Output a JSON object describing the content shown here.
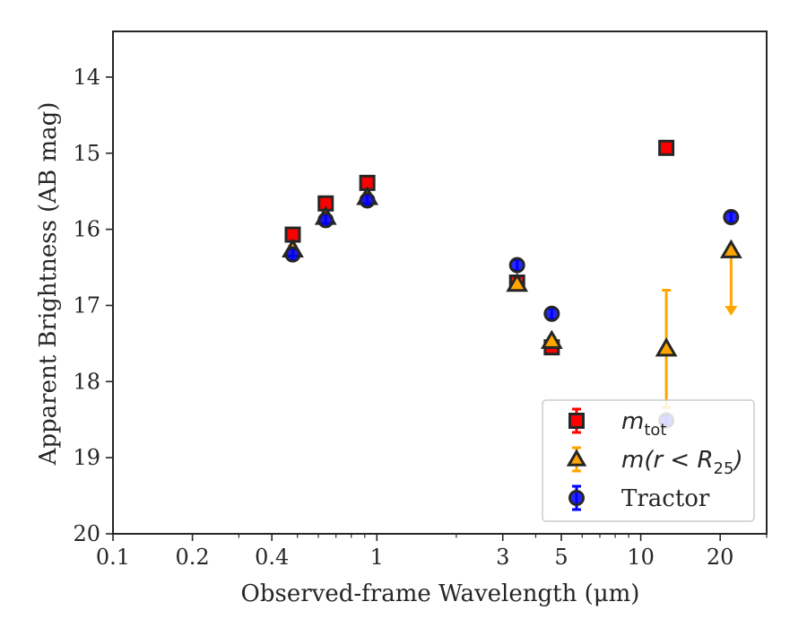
{
  "chart_data": {
    "type": "scatter",
    "xscale": "log",
    "yaxis_inverted": true,
    "xlabel": "Observed-frame Wavelength (μm)",
    "ylabel": "Apparent Brightness (AB mag)",
    "xlim": [
      0.1,
      30
    ],
    "ylim": [
      20,
      13.4
    ],
    "x_ticks": [
      {
        "value": 0.1,
        "label": "0.1"
      },
      {
        "value": 0.2,
        "label": "0.2"
      },
      {
        "value": 0.4,
        "label": "0.4"
      },
      {
        "value": 1,
        "label": "1"
      },
      {
        "value": 3,
        "label": "3"
      },
      {
        "value": 5,
        "label": "5"
      },
      {
        "value": 10,
        "label": "10"
      },
      {
        "value": 20,
        "label": "20"
      }
    ],
    "y_ticks": [
      {
        "value": 14,
        "label": "14"
      },
      {
        "value": 15,
        "label": "15"
      },
      {
        "value": 16,
        "label": "16"
      },
      {
        "value": 17,
        "label": "17"
      },
      {
        "value": 18,
        "label": "18"
      },
      {
        "value": 19,
        "label": "19"
      },
      {
        "value": 20,
        "label": "20"
      }
    ],
    "legend": {
      "position": "lower-right",
      "entries": [
        {
          "series": "m_tot",
          "main": "m",
          "sub": "tot"
        },
        {
          "series": "m_r25",
          "main": "m(r < R",
          "sub": "25",
          "tail": ")"
        },
        {
          "series": "tractor",
          "main": "Tractor"
        }
      ]
    },
    "series": [
      {
        "id": "m_tot",
        "marker": "square",
        "color": "#ff0000",
        "edgecolor": "#262626",
        "errcolor": "#ff0000",
        "points": [
          {
            "x": 0.48,
            "y": 16.07,
            "err": 0.05
          },
          {
            "x": 0.64,
            "y": 15.66,
            "err": 0.05
          },
          {
            "x": 0.92,
            "y": 15.39,
            "err": 0.05
          },
          {
            "x": 3.4,
            "y": 16.7,
            "err": 0.05
          },
          {
            "x": 4.6,
            "y": 17.55,
            "err": 0.05
          },
          {
            "x": 12.5,
            "y": 14.93,
            "err": 0.05
          }
        ]
      },
      {
        "id": "m_r25",
        "marker": "triangle",
        "color": "#ffa500",
        "edgecolor": "#262626",
        "errcolor": "#ffa500",
        "points": [
          {
            "x": 0.48,
            "y": 16.27,
            "err": 0.05
          },
          {
            "x": 0.64,
            "y": 15.84,
            "err": 0.05
          },
          {
            "x": 0.92,
            "y": 15.58,
            "err": 0.05
          },
          {
            "x": 3.4,
            "y": 16.72,
            "err": 0.05
          },
          {
            "x": 4.6,
            "y": 17.47,
            "err": 0.05
          },
          {
            "x": 12.5,
            "y": 17.57,
            "err_up": 0.77,
            "err_down": 0.77
          },
          {
            "x": 22,
            "y": 16.28,
            "upper_limit": true,
            "arrow_to": 17.1
          }
        ]
      },
      {
        "id": "tractor",
        "marker": "circle",
        "color": "#0000ff",
        "edgecolor": "#262626",
        "errcolor": "#0000ff",
        "points": [
          {
            "x": 0.48,
            "y": 16.33,
            "err": 0.07
          },
          {
            "x": 0.64,
            "y": 15.88,
            "err": 0.07
          },
          {
            "x": 0.92,
            "y": 15.62,
            "err": 0.07
          },
          {
            "x": 3.4,
            "y": 16.47,
            "err": 0.07
          },
          {
            "x": 4.6,
            "y": 17.11,
            "err": 0.07
          },
          {
            "x": 12.5,
            "y": 18.51,
            "err": 0.07
          },
          {
            "x": 22,
            "y": 15.84,
            "err": 0.07
          }
        ]
      }
    ]
  }
}
